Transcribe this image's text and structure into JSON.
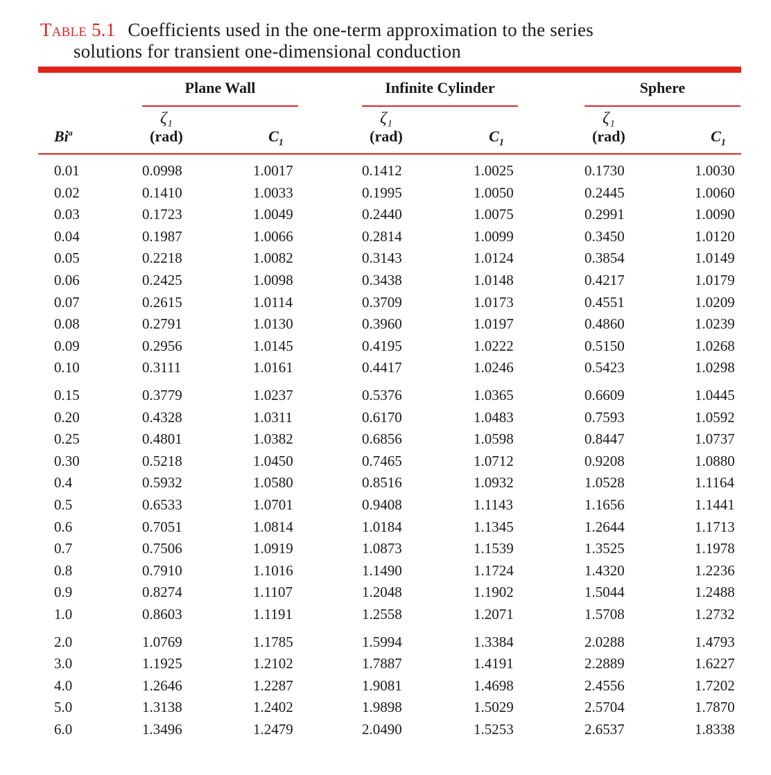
{
  "caption": {
    "label": "Table",
    "number": "5.1",
    "line1": "Coefficients used in the one-term approximation to the series",
    "line2": "solutions for transient one-dimensional conduction"
  },
  "header": {
    "groups": [
      "Plane Wall",
      "Infinite Cylinder",
      "Sphere"
    ],
    "zeta_symbol": "ζ₁",
    "rad_label": "(rad)",
    "c_label": "C",
    "c_sub": "1",
    "bi_label": "Bi",
    "bi_sup": "a"
  },
  "rows": [
    [
      "0.01",
      "0.0998",
      "1.0017",
      "0.1412",
      "1.0025",
      "0.1730",
      "1.0030"
    ],
    [
      "0.02",
      "0.1410",
      "1.0033",
      "0.1995",
      "1.0050",
      "0.2445",
      "1.0060"
    ],
    [
      "0.03",
      "0.1723",
      "1.0049",
      "0.2440",
      "1.0075",
      "0.2991",
      "1.0090"
    ],
    [
      "0.04",
      "0.1987",
      "1.0066",
      "0.2814",
      "1.0099",
      "0.3450",
      "1.0120"
    ],
    [
      "0.05",
      "0.2218",
      "1.0082",
      "0.3143",
      "1.0124",
      "0.3854",
      "1.0149"
    ],
    [
      "0.06",
      "0.2425",
      "1.0098",
      "0.3438",
      "1.0148",
      "0.4217",
      "1.0179"
    ],
    [
      "0.07",
      "0.2615",
      "1.0114",
      "0.3709",
      "1.0173",
      "0.4551",
      "1.0209"
    ],
    [
      "0.08",
      "0.2791",
      "1.0130",
      "0.3960",
      "1.0197",
      "0.4860",
      "1.0239"
    ],
    [
      "0.09",
      "0.2956",
      "1.0145",
      "0.4195",
      "1.0222",
      "0.5150",
      "1.0268"
    ],
    [
      "0.10",
      "0.3111",
      "1.0161",
      "0.4417",
      "1.0246",
      "0.5423",
      "1.0298"
    ],
    [
      "0.15",
      "0.3779",
      "1.0237",
      "0.5376",
      "1.0365",
      "0.6609",
      "1.0445"
    ],
    [
      "0.20",
      "0.4328",
      "1.0311",
      "0.6170",
      "1.0483",
      "0.7593",
      "1.0592"
    ],
    [
      "0.25",
      "0.4801",
      "1.0382",
      "0.6856",
      "1.0598",
      "0.8447",
      "1.0737"
    ],
    [
      "0.30",
      "0.5218",
      "1.0450",
      "0.7465",
      "1.0712",
      "0.9208",
      "1.0880"
    ],
    [
      "0.4",
      "0.5932",
      "1.0580",
      "0.8516",
      "1.0932",
      "1.0528",
      "1.1164"
    ],
    [
      "0.5",
      "0.6533",
      "1.0701",
      "0.9408",
      "1.1143",
      "1.1656",
      "1.1441"
    ],
    [
      "0.6",
      "0.7051",
      "1.0814",
      "1.0184",
      "1.1345",
      "1.2644",
      "1.1713"
    ],
    [
      "0.7",
      "0.7506",
      "1.0919",
      "1.0873",
      "1.1539",
      "1.3525",
      "1.1978"
    ],
    [
      "0.8",
      "0.7910",
      "1.1016",
      "1.1490",
      "1.1724",
      "1.4320",
      "1.2236"
    ],
    [
      "0.9",
      "0.8274",
      "1.1107",
      "1.2048",
      "1.1902",
      "1.5044",
      "1.2488"
    ],
    [
      "1.0",
      "0.8603",
      "1.1191",
      "1.2558",
      "1.2071",
      "1.5708",
      "1.2732"
    ],
    [
      "2.0",
      "1.0769",
      "1.1785",
      "1.5994",
      "1.3384",
      "2.0288",
      "1.4793"
    ],
    [
      "3.0",
      "1.1925",
      "1.2102",
      "1.7887",
      "1.4191",
      "2.2889",
      "1.6227"
    ],
    [
      "4.0",
      "1.2646",
      "1.2287",
      "1.9081",
      "1.4698",
      "2.4556",
      "1.7202"
    ],
    [
      "5.0",
      "1.3138",
      "1.2402",
      "1.9898",
      "1.5029",
      "2.5704",
      "1.7870"
    ],
    [
      "6.0",
      "1.3496",
      "1.2479",
      "2.0490",
      "1.5253",
      "2.6537",
      "1.8338"
    ]
  ],
  "colors": {
    "accent": "#e2231a",
    "text": "#1a1a1a"
  }
}
